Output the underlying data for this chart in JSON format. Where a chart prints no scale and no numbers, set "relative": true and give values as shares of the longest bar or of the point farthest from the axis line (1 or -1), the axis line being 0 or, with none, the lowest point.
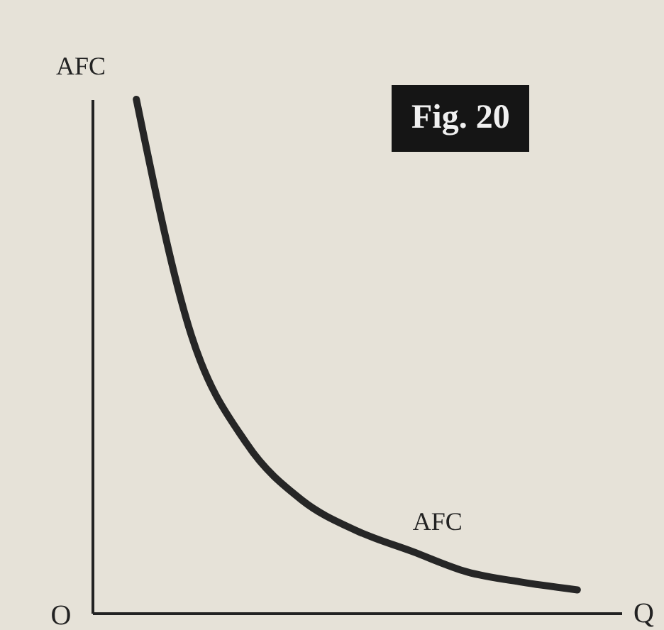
{
  "chart_data": {
    "type": "line",
    "title": "Fig. 20",
    "xlabel": "Q",
    "ylabel": "AFC",
    "relative": true,
    "annotations": [
      "O"
    ],
    "categories": [
      null,
      null,
      null,
      null,
      null,
      null,
      null,
      null,
      null
    ],
    "series": [
      {
        "name": "AFC",
        "color": "#262626",
        "values": [
          1,
          0.54,
          0.33,
          0.22,
          0.16,
          0.12,
          0.08,
          0.06,
          0.045
        ]
      }
    ],
    "marker": "none",
    "grid": false
  }
}
